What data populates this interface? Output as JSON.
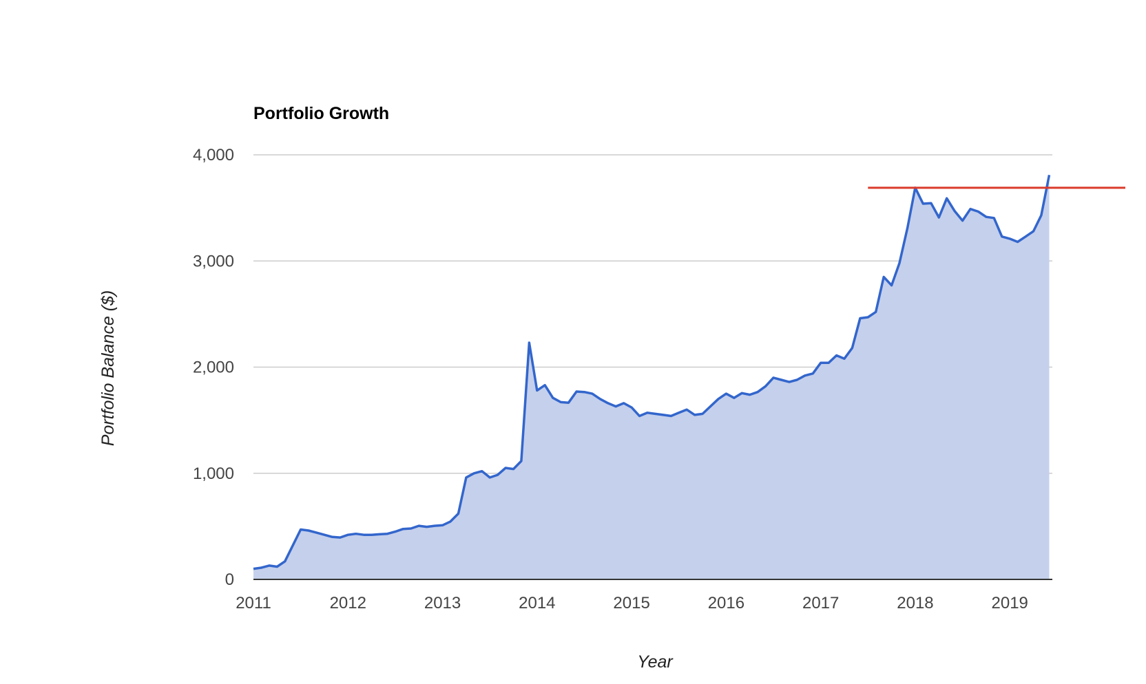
{
  "chart_data": {
    "type": "area",
    "title": "Portfolio Growth",
    "xlabel": "Year",
    "ylabel": "Portfolio Balance ($)",
    "ylim": [
      0,
      4000
    ],
    "yticks": [
      0,
      1000,
      2000,
      3000,
      4000
    ],
    "ytick_labels": [
      "0",
      "1,000",
      "2,000",
      "3,000",
      "4,000"
    ],
    "xlim": [
      2011,
      2019.45
    ],
    "xticks": [
      2011,
      2012,
      2013,
      2014,
      2015,
      2016,
      2017,
      2018,
      2019
    ],
    "xtick_labels": [
      "2011",
      "2012",
      "2013",
      "2014",
      "2015",
      "2016",
      "2017",
      "2018",
      "2019"
    ],
    "grid": true,
    "legend": "none",
    "colors": {
      "line": "#3366cc",
      "fill": "#c5d0ec",
      "reference_line": "#db3b2b"
    },
    "series": [
      {
        "x": [
          2011.0,
          2011.083,
          2011.167,
          2011.25,
          2011.333,
          2011.5,
          2011.583,
          2011.667,
          2011.75,
          2011.833,
          2011.917,
          2012.0,
          2012.083,
          2012.167,
          2012.25,
          2012.333,
          2012.417,
          2012.5,
          2012.583,
          2012.667,
          2012.75,
          2012.833,
          2012.917,
          2013.0,
          2013.083,
          2013.167,
          2013.25,
          2013.333,
          2013.417,
          2013.5,
          2013.583,
          2013.667,
          2013.75,
          2013.833,
          2013.917,
          2014.0,
          2014.083,
          2014.167,
          2014.25,
          2014.333,
          2014.417,
          2014.5,
          2014.583,
          2014.667,
          2014.75,
          2014.833,
          2014.917,
          2015.0,
          2015.083,
          2015.167,
          2015.25,
          2015.333,
          2015.417,
          2015.5,
          2015.583,
          2015.667,
          2015.75,
          2015.833,
          2015.917,
          2016.0,
          2016.083,
          2016.167,
          2016.25,
          2016.333,
          2016.417,
          2016.5,
          2016.583,
          2016.667,
          2016.75,
          2016.833,
          2016.917,
          2017.0,
          2017.083,
          2017.167,
          2017.25,
          2017.333,
          2017.417,
          2017.5,
          2017.583,
          2017.667,
          2017.75,
          2017.833,
          2017.917,
          2018.0,
          2018.083,
          2018.167,
          2018.25,
          2018.333,
          2018.417,
          2018.5,
          2018.583,
          2018.667,
          2018.75,
          2018.833,
          2018.917,
          2019.0,
          2019.083,
          2019.167,
          2019.25,
          2019.333,
          2019.417
        ],
        "y": [
          100,
          110,
          130,
          120,
          170,
          470,
          460,
          440,
          420,
          400,
          395,
          420,
          430,
          420,
          420,
          425,
          430,
          450,
          475,
          480,
          505,
          495,
          505,
          510,
          545,
          620,
          960,
          1000,
          1020,
          960,
          985,
          1050,
          1040,
          1115,
          2230,
          1780,
          1830,
          1710,
          1670,
          1665,
          1770,
          1765,
          1750,
          1700,
          1660,
          1630,
          1660,
          1620,
          1540,
          1570,
          1560,
          1550,
          1540,
          1570,
          1600,
          1550,
          1560,
          1630,
          1700,
          1750,
          1710,
          1755,
          1740,
          1765,
          1820,
          1900,
          1880,
          1860,
          1880,
          1920,
          1940,
          2040,
          2040,
          2110,
          2080,
          2180,
          2460,
          2470,
          2520,
          2850,
          2770,
          2980,
          3310,
          3690,
          3540,
          3545,
          3410,
          3590,
          3470,
          3380,
          3490,
          3465,
          3415,
          3405,
          3230,
          3210,
          3180,
          3230,
          3280,
          3430,
          3810
        ]
      }
    ],
    "reference_line": {
      "y": 3690,
      "x_start": 2017.5
    }
  }
}
